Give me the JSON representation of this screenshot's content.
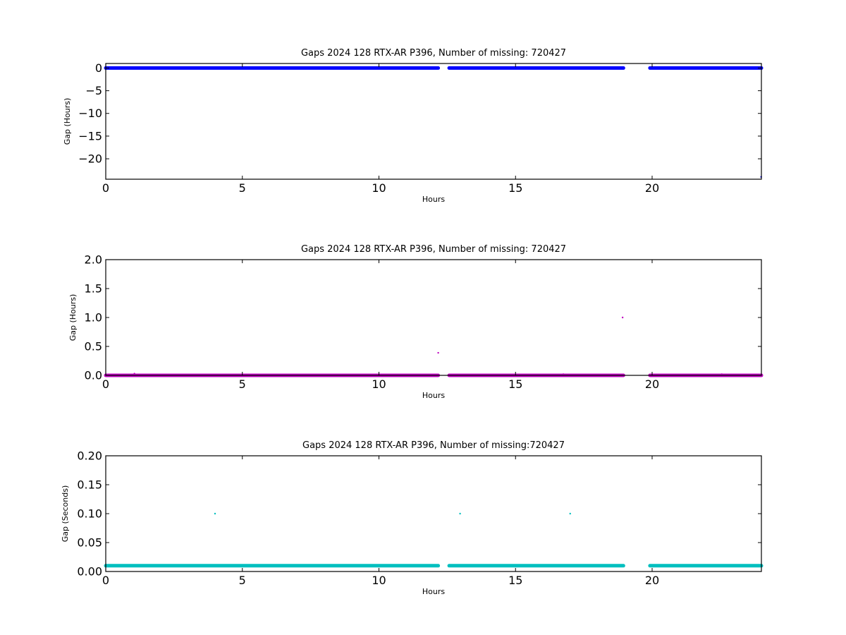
{
  "chart_data": [
    {
      "type": "scatter",
      "title": "Gaps 2024 128 RTX-AR  P396, Number of missing: 720427",
      "xlabel": "Hours",
      "ylabel": "Gap (Hours)",
      "xlim": [
        0,
        24
      ],
      "ylim": [
        -24.5,
        1
      ],
      "xticks": [
        0,
        5,
        10,
        15,
        20
      ],
      "yticks": [
        0,
        -5,
        -10,
        -15,
        -20
      ],
      "xtick_labels": [
        "0",
        "5",
        "10",
        "15",
        "20"
      ],
      "ytick_labels": [
        "0",
        "−5",
        "−10",
        "−15",
        "−20"
      ],
      "color": "#0000ff",
      "marker_size": 2.5,
      "segments": [
        {
          "x_start": 0.0,
          "x_end": 12.17,
          "y": 0.0
        },
        {
          "x_start": 12.57,
          "x_end": 18.95,
          "y": 0.0
        },
        {
          "x_start": 19.92,
          "x_end": 24.0,
          "y": 0.0
        }
      ],
      "points": [
        {
          "x": 23.99,
          "y": -24.0
        }
      ]
    },
    {
      "type": "scatter",
      "title": "Gaps 2024 128 RTX-AR  P396, Number of missing: 720427",
      "xlabel": "Hours",
      "ylabel": "Gap (Hours)",
      "xlim": [
        0,
        24
      ],
      "ylim": [
        0,
        2.0
      ],
      "xticks": [
        0,
        5,
        10,
        15,
        20
      ],
      "yticks": [
        0,
        0.5,
        1.0,
        1.5,
        2.0
      ],
      "xtick_labels": [
        "0",
        "5",
        "10",
        "15",
        "20"
      ],
      "ytick_labels": [
        "0.0",
        "0.5",
        "1.0",
        "1.5",
        "2.0"
      ],
      "color": "#bf00bf",
      "marker_size": 2.5,
      "segments": [
        {
          "x_start": 0.0,
          "x_end": 12.17,
          "y": 0.0
        },
        {
          "x_start": 12.57,
          "x_end": 18.95,
          "y": 0.0
        },
        {
          "x_start": 19.92,
          "x_end": 24.0,
          "y": 0.0
        }
      ],
      "points": [
        {
          "x": 1.05,
          "y": 0.03
        },
        {
          "x": 12.17,
          "y": 0.39
        },
        {
          "x": 16.75,
          "y": 0.02
        },
        {
          "x": 18.92,
          "y": 1.0
        },
        {
          "x": 22.55,
          "y": 0.02
        }
      ]
    },
    {
      "type": "scatter",
      "title": "Gaps 2024 128 RTX-AR  P396, Number of missing:720427",
      "xlabel": "Hours",
      "ylabel": "Gap (Seconds)",
      "xlim": [
        0,
        24
      ],
      "ylim": [
        0,
        0.2
      ],
      "xticks": [
        0,
        5,
        10,
        15,
        20
      ],
      "yticks": [
        0,
        0.05,
        0.1,
        0.15,
        0.2
      ],
      "xtick_labels": [
        "0",
        "5",
        "10",
        "15",
        "20"
      ],
      "ytick_labels": [
        "0.00",
        "0.05",
        "0.10",
        "0.15",
        "0.20"
      ],
      "color": "#00bfbf",
      "marker_size": 2.5,
      "segments": [
        {
          "x_start": 0.0,
          "x_end": 12.17,
          "y": 0.01
        },
        {
          "x_start": 12.57,
          "x_end": 18.95,
          "y": 0.01
        },
        {
          "x_start": 19.92,
          "x_end": 24.0,
          "y": 0.01
        }
      ],
      "points": [
        {
          "x": 4.0,
          "y": 0.1
        },
        {
          "x": 12.97,
          "y": 0.1
        },
        {
          "x": 17.0,
          "y": 0.1
        }
      ]
    }
  ]
}
